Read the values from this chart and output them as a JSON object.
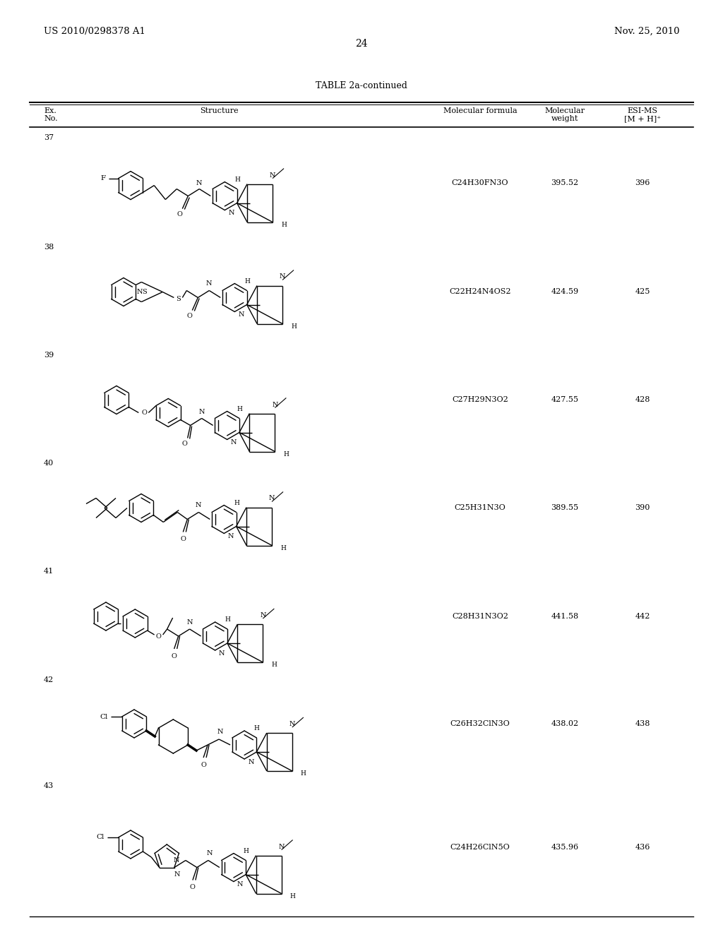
{
  "page_header_left": "US 2010/0298378 A1",
  "page_header_right": "Nov. 25, 2010",
  "page_number": "24",
  "table_title": "TABLE 2a-continued",
  "rows": [
    {
      "ex_no": "37",
      "mol_formula": "C24H30FN3O",
      "mol_weight": "395.52",
      "esi_ms": "396"
    },
    {
      "ex_no": "38",
      "mol_formula": "C22H24N4OS2",
      "mol_weight": "424.59",
      "esi_ms": "425"
    },
    {
      "ex_no": "39",
      "mol_formula": "C27H29N3O2",
      "mol_weight": "427.55",
      "esi_ms": "428"
    },
    {
      "ex_no": "40",
      "mol_formula": "C25H31N3O",
      "mol_weight": "389.55",
      "esi_ms": "390"
    },
    {
      "ex_no": "41",
      "mol_formula": "C28H31N3O2",
      "mol_weight": "441.58",
      "esi_ms": "442"
    },
    {
      "ex_no": "42",
      "mol_formula": "C26H32ClN3O",
      "mol_weight": "438.02",
      "esi_ms": "438"
    },
    {
      "ex_no": "43",
      "mol_formula": "C24H26ClN5O",
      "mol_weight": "435.96",
      "esi_ms": "436"
    }
  ],
  "background_color": "#ffffff",
  "text_color": "#000000"
}
